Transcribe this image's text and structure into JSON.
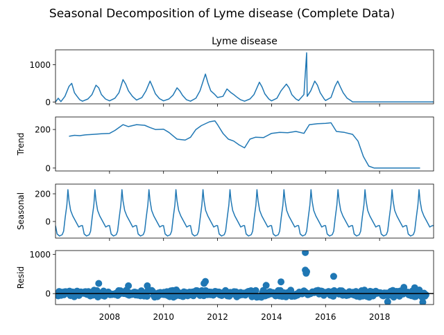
{
  "title": "Seasonal Decomposition of Lyme disease (Complete Data)",
  "chart_data": {
    "type": "line",
    "title": "Seasonal Decomposition of Lyme disease (Complete Data)",
    "x_range": [
      2006.0,
      2020.0
    ],
    "x_ticks": [
      2008,
      2010,
      2012,
      2014,
      2016,
      2018
    ],
    "x_tick_labels": [
      "2008",
      "2010",
      "2012",
      "2014",
      "2016",
      "2018"
    ],
    "panels": [
      {
        "key": "observed",
        "title": "Lyme disease",
        "ylabel": "",
        "kind": "line",
        "ylim": [
          -50,
          1400
        ],
        "yticks": [
          0,
          1000
        ],
        "ytick_labels": [
          "0",
          "1000"
        ],
        "series_pts": [
          [
            2006.0,
            0
          ],
          [
            2006.1,
            100
          ],
          [
            2006.2,
            10
          ],
          [
            2006.35,
            150
          ],
          [
            2006.5,
            420
          ],
          [
            2006.6,
            500
          ],
          [
            2006.7,
            250
          ],
          [
            2006.8,
            150
          ],
          [
            2006.9,
            60
          ],
          [
            2007.0,
            20
          ],
          [
            2007.2,
            80
          ],
          [
            2007.35,
            200
          ],
          [
            2007.5,
            450
          ],
          [
            2007.6,
            380
          ],
          [
            2007.7,
            200
          ],
          [
            2007.85,
            80
          ],
          [
            2008.0,
            30
          ],
          [
            2008.2,
            100
          ],
          [
            2008.35,
            250
          ],
          [
            2008.5,
            600
          ],
          [
            2008.6,
            480
          ],
          [
            2008.7,
            300
          ],
          [
            2008.85,
            150
          ],
          [
            2009.0,
            50
          ],
          [
            2009.2,
            120
          ],
          [
            2009.35,
            300
          ],
          [
            2009.5,
            560
          ],
          [
            2009.6,
            400
          ],
          [
            2009.7,
            220
          ],
          [
            2009.85,
            90
          ],
          [
            2010.0,
            30
          ],
          [
            2010.2,
            80
          ],
          [
            2010.35,
            180
          ],
          [
            2010.5,
            380
          ],
          [
            2010.6,
            300
          ],
          [
            2010.7,
            180
          ],
          [
            2010.85,
            60
          ],
          [
            2011.0,
            20
          ],
          [
            2011.2,
            100
          ],
          [
            2011.35,
            300
          ],
          [
            2011.55,
            750
          ],
          [
            2011.65,
            500
          ],
          [
            2011.75,
            300
          ],
          [
            2011.9,
            200
          ],
          [
            2012.0,
            120
          ],
          [
            2012.2,
            150
          ],
          [
            2012.35,
            350
          ],
          [
            2012.5,
            250
          ],
          [
            2012.6,
            200
          ],
          [
            2012.7,
            140
          ],
          [
            2012.85,
            60
          ],
          [
            2013.0,
            20
          ],
          [
            2013.2,
            80
          ],
          [
            2013.35,
            200
          ],
          [
            2013.55,
            530
          ],
          [
            2013.65,
            400
          ],
          [
            2013.75,
            220
          ],
          [
            2013.9,
            80
          ],
          [
            2014.0,
            30
          ],
          [
            2014.2,
            100
          ],
          [
            2014.35,
            300
          ],
          [
            2014.55,
            480
          ],
          [
            2014.65,
            380
          ],
          [
            2014.75,
            200
          ],
          [
            2014.9,
            80
          ],
          [
            2015.0,
            40
          ],
          [
            2015.2,
            200
          ],
          [
            2015.3,
            1320
          ],
          [
            2015.32,
            150
          ],
          [
            2015.45,
            300
          ],
          [
            2015.6,
            560
          ],
          [
            2015.7,
            450
          ],
          [
            2015.8,
            250
          ],
          [
            2015.95,
            80
          ],
          [
            2016.0,
            40
          ],
          [
            2016.2,
            120
          ],
          [
            2016.35,
            420
          ],
          [
            2016.45,
            560
          ],
          [
            2016.55,
            400
          ],
          [
            2016.65,
            250
          ],
          [
            2016.8,
            100
          ],
          [
            2016.95,
            30
          ],
          [
            2017.0,
            0
          ],
          [
            2020.0,
            0
          ]
        ]
      },
      {
        "key": "trend",
        "title": "",
        "ylabel": "Trend",
        "kind": "line",
        "ylim": [
          -15,
          265
        ],
        "yticks": [
          0,
          200
        ],
        "ytick_labels": [
          "0",
          "200"
        ],
        "series_pts": [
          [
            2006.5,
            165
          ],
          [
            2006.7,
            170
          ],
          [
            2006.9,
            168
          ],
          [
            2007.1,
            172
          ],
          [
            2007.4,
            175
          ],
          [
            2007.7,
            178
          ],
          [
            2008.0,
            180
          ],
          [
            2008.2,
            195
          ],
          [
            2008.5,
            225
          ],
          [
            2008.7,
            215
          ],
          [
            2009.0,
            225
          ],
          [
            2009.3,
            222
          ],
          [
            2009.5,
            210
          ],
          [
            2009.7,
            200
          ],
          [
            2010.0,
            202
          ],
          [
            2010.2,
            185
          ],
          [
            2010.5,
            150
          ],
          [
            2010.8,
            145
          ],
          [
            2011.0,
            160
          ],
          [
            2011.2,
            200
          ],
          [
            2011.4,
            220
          ],
          [
            2011.7,
            240
          ],
          [
            2011.9,
            245
          ],
          [
            2012.0,
            225
          ],
          [
            2012.2,
            180
          ],
          [
            2012.4,
            150
          ],
          [
            2012.6,
            140
          ],
          [
            2012.8,
            120
          ],
          [
            2013.0,
            105
          ],
          [
            2013.2,
            150
          ],
          [
            2013.4,
            160
          ],
          [
            2013.7,
            158
          ],
          [
            2014.0,
            180
          ],
          [
            2014.3,
            185
          ],
          [
            2014.6,
            183
          ],
          [
            2014.9,
            190
          ],
          [
            2015.2,
            180
          ],
          [
            2015.4,
            225
          ],
          [
            2015.7,
            230
          ],
          [
            2016.0,
            232
          ],
          [
            2016.2,
            235
          ],
          [
            2016.4,
            190
          ],
          [
            2016.7,
            185
          ],
          [
            2017.0,
            175
          ],
          [
            2017.2,
            140
          ],
          [
            2017.4,
            60
          ],
          [
            2017.6,
            10
          ],
          [
            2017.8,
            0
          ],
          [
            2019.5,
            0
          ]
        ]
      },
      {
        "key": "seasonal",
        "title": "",
        "ylabel": "Seasonal",
        "kind": "line",
        "ylim": [
          -120,
          270
        ],
        "yticks": [
          0,
          200
        ],
        "ytick_labels": [
          "0",
          "200"
        ],
        "season_shape": [
          [
            0.0,
            -30
          ],
          [
            0.06,
            -90
          ],
          [
            0.15,
            -105
          ],
          [
            0.25,
            -95
          ],
          [
            0.3,
            -70
          ],
          [
            0.36,
            30
          ],
          [
            0.42,
            120
          ],
          [
            0.46,
            230
          ],
          [
            0.5,
            150
          ],
          [
            0.56,
            80
          ],
          [
            0.64,
            40
          ],
          [
            0.75,
            0
          ],
          [
            0.86,
            -40
          ],
          [
            0.95,
            -30
          ],
          [
            1.0,
            -30
          ]
        ],
        "season_start": 2006.0,
        "season_end": 2020.0
      },
      {
        "key": "resid",
        "title": "",
        "ylabel": "Resid",
        "kind": "scatter",
        "ylim": [
          -280,
          1100
        ],
        "yticks": [
          0,
          1000
        ],
        "ytick_labels": [
          "0",
          "1000"
        ],
        "zero_line": true,
        "outliers": [
          [
            2015.25,
            1050
          ],
          [
            2015.25,
            600
          ],
          [
            2015.3,
            560
          ],
          [
            2015.28,
            520
          ],
          [
            2016.3,
            440
          ],
          [
            2014.35,
            300
          ],
          [
            2011.55,
            310
          ],
          [
            2011.5,
            260
          ],
          [
            2007.6,
            260
          ],
          [
            2008.7,
            200
          ],
          [
            2009.4,
            200
          ],
          [
            2013.8,
            210
          ],
          [
            2018.3,
            -210
          ],
          [
            2019.6,
            -220
          ],
          [
            2018.9,
            160
          ],
          [
            2019.3,
            150
          ]
        ]
      }
    ]
  }
}
